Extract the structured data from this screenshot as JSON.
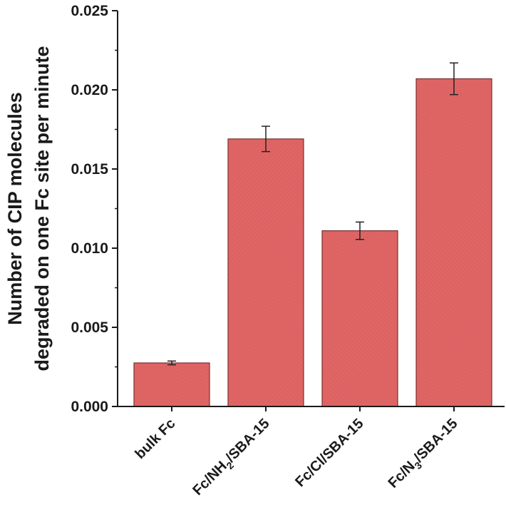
{
  "chart_data": {
    "type": "bar",
    "title": "",
    "xlabel": "",
    "ylabel_lines": [
      "Number of CIP molecules",
      "degraded on one Fc site per minute"
    ],
    "categories": [
      {
        "label": "bulk Fc"
      },
      {
        "label": "Fc/NH",
        "sub": "2",
        "suffix": "/SBA-15"
      },
      {
        "label": "Fc/Cl/SBA-15"
      },
      {
        "label": "Fc/N",
        "sub": "3",
        "suffix": "/SBA-15"
      }
    ],
    "values": [
      0.00275,
      0.0169,
      0.0111,
      0.0207
    ],
    "error": [
      0.00012,
      0.0008,
      0.00055,
      0.001
    ],
    "ylim": [
      0,
      0.025
    ],
    "yticks": [
      "0.000",
      "0.005",
      "0.010",
      "0.015",
      "0.020",
      "0.025"
    ],
    "grid": false,
    "bar_color": "#e06666",
    "bar_edge": "#7a2e2e"
  }
}
